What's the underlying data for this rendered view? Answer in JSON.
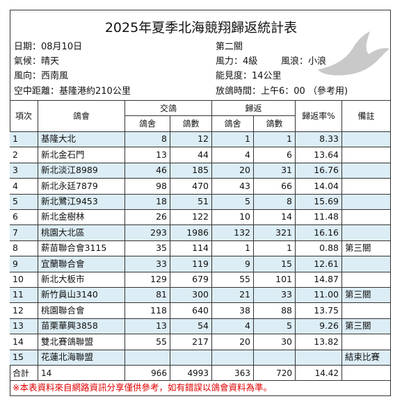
{
  "header": {
    "title": "2025年夏季北海競翔歸返統計表"
  },
  "info": {
    "left": [
      "日期：08月10日",
      "氣候：晴天",
      "風向：西南風",
      "空中距離：基隆港約210公里"
    ],
    "right": [
      [
        "第二關"
      ],
      [
        "風力：4級",
        "風浪：小浪"
      ],
      [
        "能見度：14公里"
      ],
      [
        "放鴿時間：上午6：00 （參考用)"
      ]
    ]
  },
  "table": {
    "headers": {
      "no": "項次",
      "club": "鴿會",
      "sent": "交鴿",
      "returned": "歸返",
      "sent_lofts": "鴿舍",
      "sent_birds": "鴿數",
      "ret_lofts": "鴿舍",
      "ret_birds": "鴿數",
      "rate": "歸返率%",
      "note": "備註"
    },
    "rows": [
      {
        "no": "1",
        "club": "基隆大北",
        "sent_lofts": "8",
        "sent_birds": "12",
        "ret_lofts": "1",
        "ret_birds": "1",
        "rate": "8.33"
      },
      {
        "no": "2",
        "club": "新北金石門",
        "sent_lofts": "13",
        "sent_birds": "44",
        "ret_lofts": "4",
        "ret_birds": "6",
        "rate": "13.64"
      },
      {
        "no": "3",
        "club": "新北淡江8989",
        "sent_lofts": "46",
        "sent_birds": "185",
        "ret_lofts": "20",
        "ret_birds": "31",
        "rate": "16.76"
      },
      {
        "no": "4",
        "club": "新北永廷7879",
        "sent_lofts": "98",
        "sent_birds": "470",
        "ret_lofts": "43",
        "ret_birds": "66",
        "rate": "14.04"
      },
      {
        "no": "5",
        "club": "新北鷺江9453",
        "sent_lofts": "18",
        "sent_birds": "51",
        "ret_lofts": "5",
        "ret_birds": "8",
        "rate": "15.69"
      },
      {
        "no": "6",
        "club": "新北金樹林",
        "sent_lofts": "26",
        "sent_birds": "122",
        "ret_lofts": "10",
        "ret_birds": "14",
        "rate": "11.48"
      },
      {
        "no": "7",
        "club": "桃園大北區",
        "sent_lofts": "293",
        "sent_birds": "1986",
        "ret_lofts": "132",
        "ret_birds": "321",
        "rate": "16.16"
      },
      {
        "no": "8",
        "club": "薪苗聯合會3115",
        "sent_lofts": "35",
        "sent_birds": "114",
        "ret_lofts": "1",
        "ret_birds": "1",
        "rate": "0.88",
        "note": "第三關"
      },
      {
        "no": "9",
        "club": "宜蘭聯合會",
        "sent_lofts": "33",
        "sent_birds": "119",
        "ret_lofts": "9",
        "ret_birds": "15",
        "rate": "12.61"
      },
      {
        "no": "10",
        "club": "新北大板市",
        "sent_lofts": "129",
        "sent_birds": "679",
        "ret_lofts": "55",
        "ret_birds": "101",
        "rate": "14.87"
      },
      {
        "no": "11",
        "club": "新竹員山3140",
        "sent_lofts": "81",
        "sent_birds": "300",
        "ret_lofts": "21",
        "ret_birds": "33",
        "rate": "11.00",
        "note": "第三關"
      },
      {
        "no": "12",
        "club": "桃園聯合會",
        "sent_lofts": "118",
        "sent_birds": "640",
        "ret_lofts": "38",
        "ret_birds": "88",
        "rate": "13.75"
      },
      {
        "no": "13",
        "club": "苗栗華興3858",
        "sent_lofts": "13",
        "sent_birds": "54",
        "ret_lofts": "4",
        "ret_birds": "5",
        "rate": "9.26",
        "note": "第三關"
      },
      {
        "no": "14",
        "club": "雙北賽鴿聯盟",
        "sent_lofts": "55",
        "sent_birds": "217",
        "ret_lofts": "20",
        "ret_birds": "30",
        "rate": "13.82"
      },
      {
        "no": "15",
        "club": "花蓮北海聯盟",
        "note": "結束比賽"
      }
    ],
    "total": {
      "no": "合計",
      "club": "14",
      "sent_lofts": "966",
      "sent_birds": "4993",
      "ret_lofts": "363",
      "ret_birds": "720",
      "rate": "14.42"
    }
  },
  "footer": {
    "note": "※本表資料來自網路資訊分享僅供參考，如有錯誤以鴿會資料為準。"
  }
}
